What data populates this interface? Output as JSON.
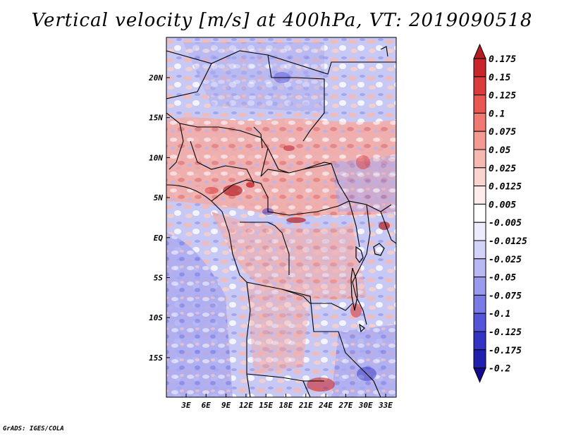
{
  "title": "Vertical velocity [m/s] at 400hPa, VT: 2019090518",
  "credit": "GrADS: IGES/COLA",
  "lat_labels": [
    "20N",
    "15N",
    "10N",
    "5N",
    "EQ",
    "5S",
    "10S",
    "15S"
  ],
  "lon_labels": [
    "3E",
    "6E",
    "9E",
    "12E",
    "15E",
    "18E",
    "21E",
    "24E",
    "27E",
    "30E",
    "33E"
  ],
  "colorbar": {
    "labels": [
      "0.175",
      "0.15",
      "0.125",
      "0.1",
      "0.075",
      "0.05",
      "0.025",
      "0.0125",
      "0.005",
      "-0.005",
      "-0.0125",
      "-0.025",
      "-0.05",
      "-0.075",
      "-0.1",
      "-0.125",
      "-0.175",
      "-0.2"
    ],
    "colors": [
      "#b21e22",
      "#c8262a",
      "#dd3b3b",
      "#ea5650",
      "#f07a72",
      "#f59a92",
      "#f8b8b2",
      "#fbd4d0",
      "#fdecea",
      "#ffffff",
      "#ececfd",
      "#d2d2fa",
      "#b8b8f5",
      "#9a9aee",
      "#7a7ae6",
      "#5555da",
      "#3333c6",
      "#1f1fb0",
      "#150a8e"
    ]
  },
  "icons": {
    "colorbar_arrows": "triangle"
  }
}
